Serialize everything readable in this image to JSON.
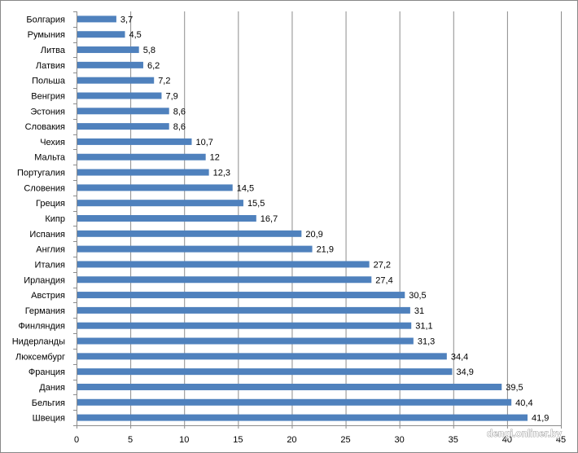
{
  "chart_data": {
    "type": "bar",
    "orientation": "horizontal",
    "title": "",
    "xlabel": "",
    "ylabel": "",
    "xlim": [
      0,
      45
    ],
    "xticks": [
      0,
      5,
      10,
      15,
      20,
      25,
      30,
      35,
      40,
      45
    ],
    "grid": true,
    "bar_color": "#4F81BD",
    "categories": [
      "Болгария",
      "Румыния",
      "Литва",
      "Латвия",
      "Польша",
      "Венгрия",
      "Эстония",
      "Словакия",
      "Чехия",
      "Мальта",
      "Португалия",
      "Словения",
      "Греция",
      "Кипр",
      "Испания",
      "Англия",
      "Италия",
      "Ирландия",
      "Австрия",
      "Германия",
      "Финляндия",
      "Нидерланды",
      "Люксембург",
      "Франция",
      "Дания",
      "Бельгия",
      "Швеция"
    ],
    "values": [
      3.7,
      4.5,
      5.8,
      6.2,
      7.2,
      7.9,
      8.6,
      8.6,
      10.7,
      12,
      12.3,
      14.5,
      15.5,
      16.7,
      20.9,
      21.9,
      27.2,
      27.4,
      30.5,
      31,
      31.1,
      31.3,
      34.4,
      34.9,
      39.5,
      40.4,
      41.9
    ],
    "value_labels": [
      "3,7",
      "4,5",
      "5,8",
      "6,2",
      "7,2",
      "7,9",
      "8,6",
      "8,6",
      "10,7",
      "12",
      "12,3",
      "14,5",
      "15,5",
      "16,7",
      "20,9",
      "21,9",
      "27,2",
      "27,4",
      "30,5",
      "31",
      "31,1",
      "31,3",
      "34,4",
      "34,9",
      "39,5",
      "40,4",
      "41,9"
    ]
  },
  "watermark": "dengi.onliner.by"
}
